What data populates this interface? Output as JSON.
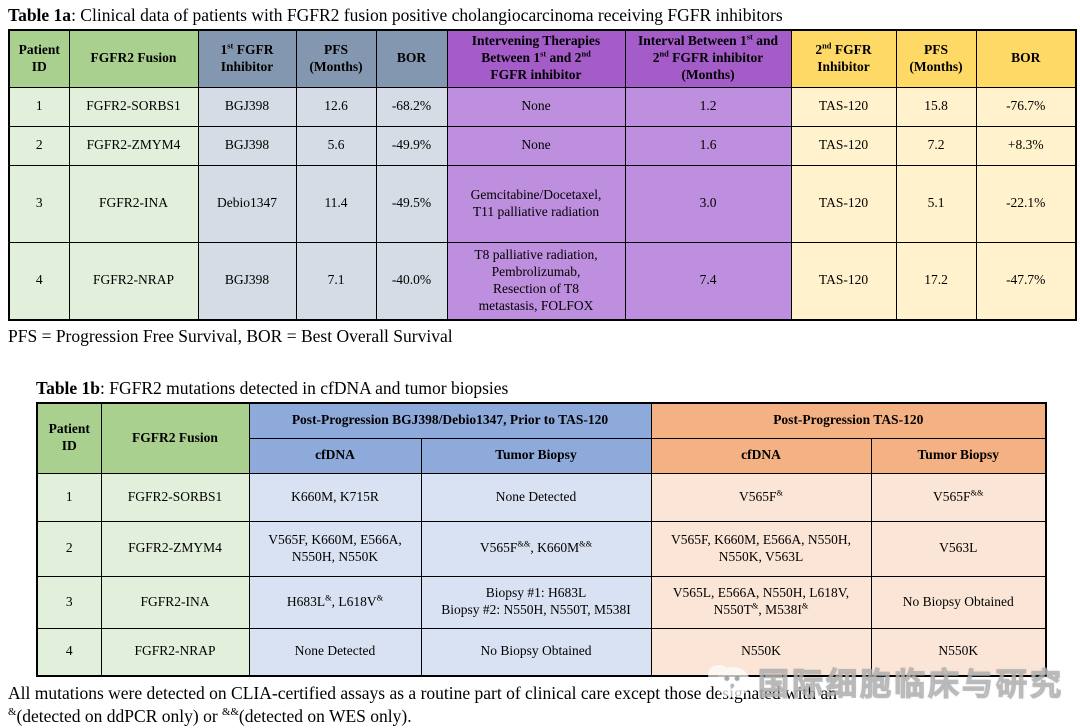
{
  "colors": {
    "green_header": "#A9D08E",
    "green_body": "#E2EFDA",
    "slate_header": "#8497B0",
    "slate_body": "#D6DCE5",
    "purple_header": "#A45CC9",
    "purple_body": "#BE8FDE",
    "gold_header": "#FFD966",
    "gold_body": "#FFF2CC",
    "blue_header": "#8EAADB",
    "blue_body": "#D9E2F3",
    "orange_header": "#F4B183",
    "orange_body": "#FBE5D6",
    "border": "#000000"
  },
  "table1a": {
    "title_bold": "Table 1a",
    "title_rest": ": Clinical data of patients with FGFR2 fusion positive cholangiocarcinoma receiving FGFR inhibitors",
    "columns": [
      "Patient\nID",
      "FGFR2 Fusion",
      "1^{st} FGFR\nInhibitor",
      "PFS\n(Months)",
      "BOR",
      "Intervening Therapies\nBetween 1^{st} and 2^{nd}\nFGFR inhibitor",
      "Interval Between 1^{st} and\n2^{nd} FGFR inhibitor\n(Months)",
      "2^{nd} FGFR\nInhibitor",
      "PFS\n(Months)",
      "BOR"
    ],
    "rows": [
      [
        "1",
        "FGFR2-SORBS1",
        "BGJ398",
        "12.6",
        "-68.2%",
        "None",
        "1.2",
        "TAS-120",
        "15.8",
        "-76.7%"
      ],
      [
        "2",
        "FGFR2-ZMYM4",
        "BGJ398",
        "5.6",
        "-49.9%",
        "None",
        "1.6",
        "TAS-120",
        "7.2",
        "+8.3%"
      ],
      [
        "3",
        "FGFR2-INA",
        "Debio1347",
        "11.4",
        "-49.5%",
        "Gemcitabine/Docetaxel,\nT11 palliative radiation",
        "3.0",
        "TAS-120",
        "5.1",
        "-22.1%"
      ],
      [
        "4",
        "FGFR2-NRAP",
        "BGJ398",
        "7.1",
        "-40.0%",
        "T8 palliative radiation,\nPembrolizumab,\nResection of T8\nmetastasis, FOLFOX",
        "7.4",
        "TAS-120",
        "17.2",
        "-47.7%"
      ]
    ],
    "footnote": "PFS = Progression Free Survival, BOR = Best Overall Survival"
  },
  "table1b": {
    "title_bold": "Table 1b",
    "title_rest": ": FGFR2 mutations detected in cfDNA and tumor biopsies",
    "col_patient": "Patient\nID",
    "col_fusion": "FGFR2 Fusion",
    "group1": "Post-Progression BGJ398/Debio1347, Prior to TAS-120",
    "group2": "Post-Progression TAS-120",
    "sub_cfdna_1": "cfDNA",
    "sub_biopsy_1": "Tumor Biopsy",
    "sub_cfdna_2": "cfDNA",
    "sub_biopsy_2": "Tumor Biopsy",
    "rows": [
      [
        "1",
        "FGFR2-SORBS1",
        "K660M, K715R",
        "None Detected",
        "V565F^{&}",
        "V565F^{&&}"
      ],
      [
        "2",
        "FGFR2-ZMYM4",
        "V565F, K660M, E566A,\nN550H, N550K",
        "V565F^{&&}, K660M^{&&}",
        "V565F, K660M, E566A, N550H,\nN550K, V563L",
        "V563L"
      ],
      [
        "3",
        "FGFR2-INA",
        "H683L^{&}, L618V^{&}",
        "Biopsy #1: H683L\nBiopsy #2: N550H, N550T, M538I",
        "V565L, E566A, N550H, L618V,\nN550T^{&}, M538I^{&}",
        "No Biopsy Obtained"
      ],
      [
        "4",
        "FGFR2-NRAP",
        "None Detected",
        "No Biopsy Obtained",
        "N550K",
        "N550K"
      ]
    ]
  },
  "footer_note": "All mutations were detected on CLIA-certified assays as a routine part of clinical care except those designated with an\n^{&}(detected on ddPCR only) or ^{&&}(detected on WES only).",
  "watermark": {
    "text": "国际细胞临床与研究",
    "logo": "panda-face-logo"
  }
}
